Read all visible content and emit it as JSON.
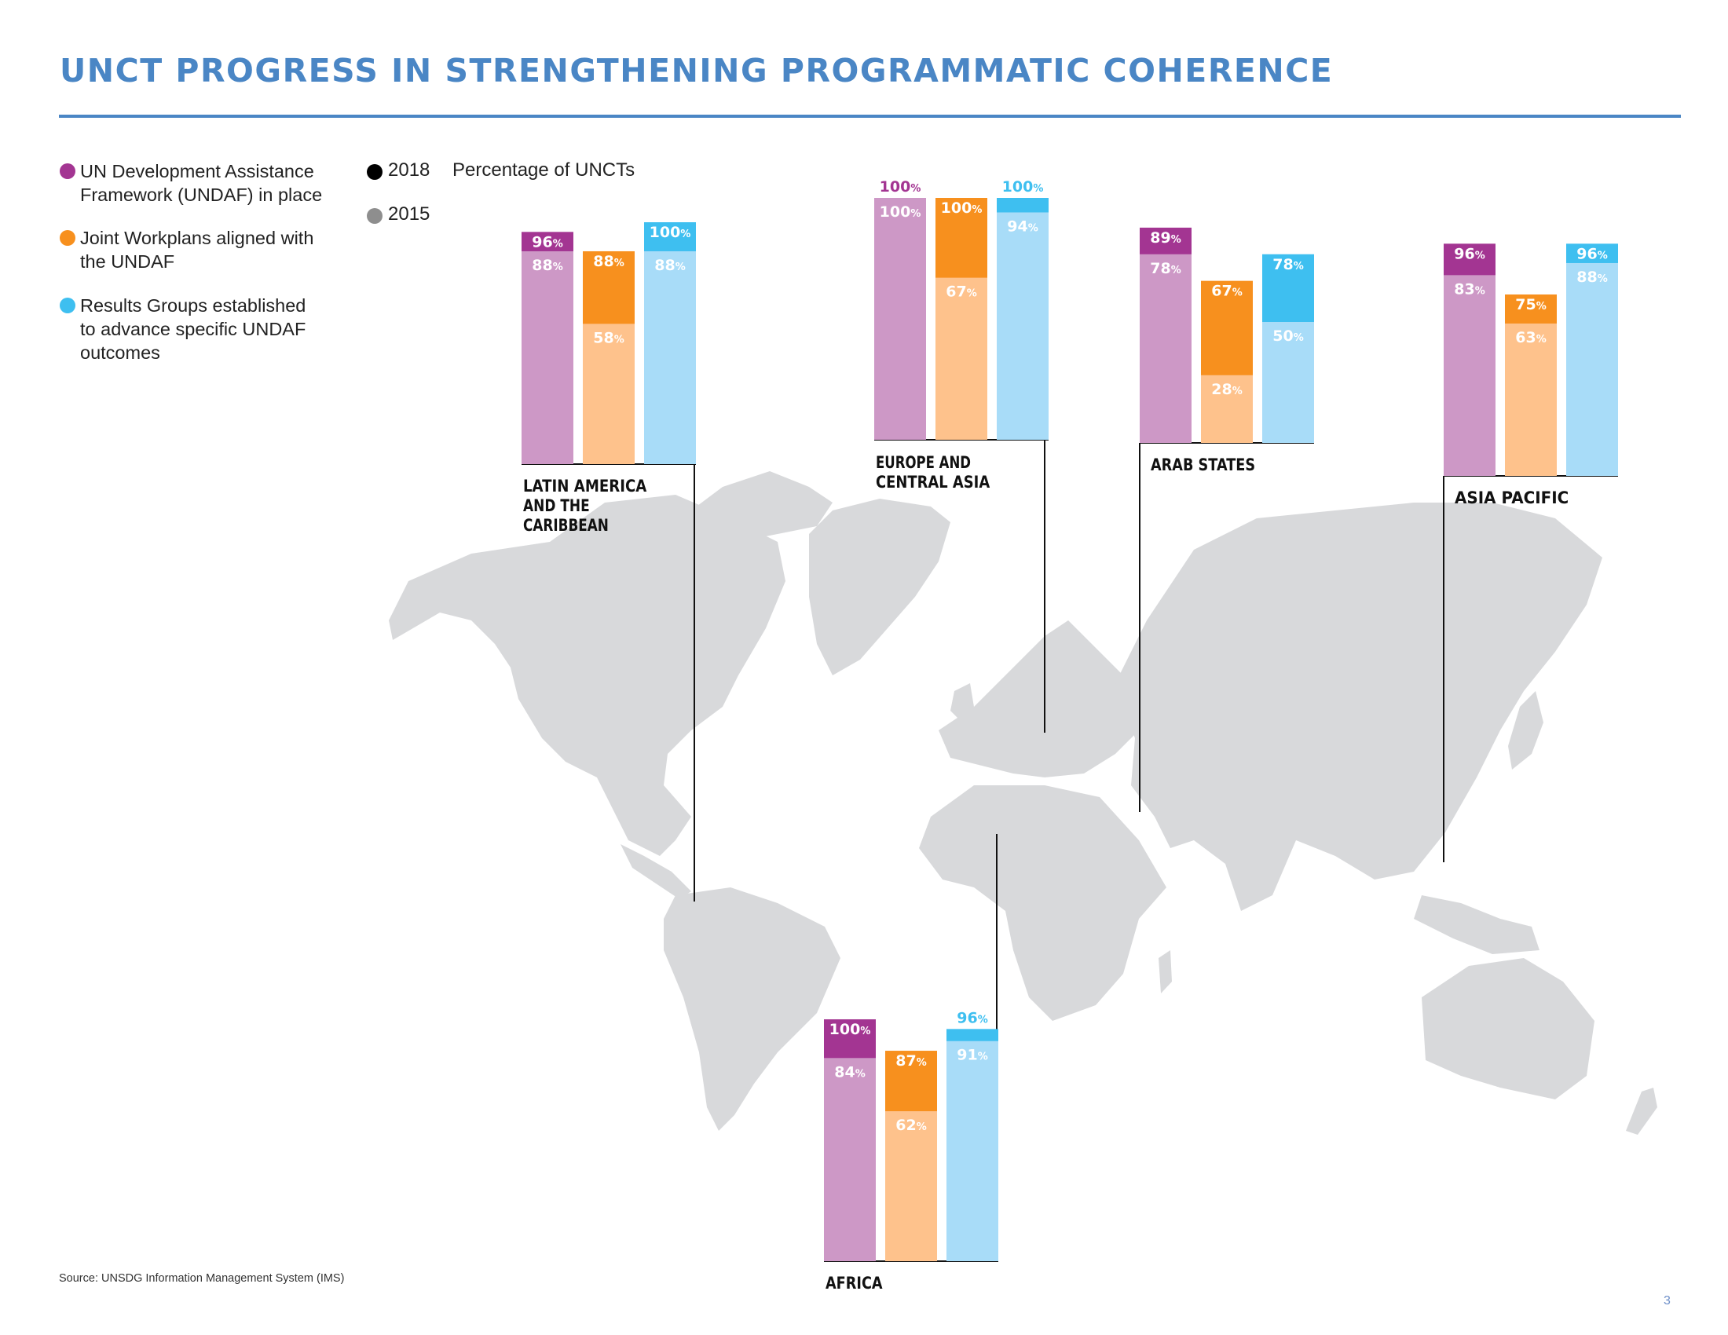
{
  "title": "UNCT PROGRESS IN STRENGTHENING PROGRAMMATIC COHERENCE",
  "legend": {
    "series": [
      {
        "label": "UN Development Assistance Framework (UNDAF) in place",
        "lines": [
          "UN Development Assistance",
          "Framework (UNDAF) in place"
        ],
        "color": "#a33592"
      },
      {
        "label": "Joint Workplans aligned with the UNDAF",
        "lines": [
          "Joint Workplans aligned with",
          "the UNDAF"
        ],
        "color": "#f7901e"
      },
      {
        "label": "Results Groups established to advance specific UNDAF outcomes",
        "lines": [
          "Results Groups established",
          "to advance specific UNDAF",
          "outcomes"
        ],
        "color": "#3ebff0"
      }
    ],
    "years": [
      {
        "label": "2018",
        "color": "#000000"
      },
      {
        "label": "2015",
        "color": "#8e8e8e"
      }
    ],
    "measure": "Percentage of UNCTs"
  },
  "colors": {
    "undaf_2018": "#a33592",
    "undaf_2015": "#cd98c6",
    "jwp_2018": "#f7901e",
    "jwp_2015": "#fec28c",
    "rg_2018": "#3ebff0",
    "rg_2015": "#a8dcf8",
    "map": "#d8d9db",
    "line": "#111111",
    "label_2015": "#ffffff"
  },
  "chart_data": {
    "type": "bar",
    "title": "UNCT PROGRESS IN STRENGTHENING PROGRAMMATIC COHERENCE",
    "ylabel": "Percentage of UNCTs",
    "unit": "%",
    "ylim": [
      0,
      100
    ],
    "series_names": [
      "UN Development Assistance Framework (UNDAF) in place",
      "Joint Workplans aligned with the UNDAF",
      "Results Groups established to advance specific UNDAF outcomes"
    ],
    "years": [
      "2018",
      "2015"
    ],
    "regions": [
      {
        "name": "LATIN AMERICA AND THE CARIBBEAN",
        "label_lines": [
          "LATIN AMERICA",
          "AND THE",
          "CARIBBEAN"
        ],
        "values_2018": [
          96,
          88,
          100
        ],
        "values_2015": [
          88,
          58,
          88
        ]
      },
      {
        "name": "EUROPE AND CENTRAL ASIA",
        "label_lines": [
          "EUROPE AND",
          "CENTRAL ASIA"
        ],
        "values_2018": [
          100,
          100,
          100
        ],
        "values_2015": [
          100,
          67,
          94
        ]
      },
      {
        "name": "ARAB STATES",
        "label_lines": [
          "ARAB STATES"
        ],
        "values_2018": [
          89,
          67,
          78
        ],
        "values_2015": [
          78,
          28,
          50
        ]
      },
      {
        "name": "ASIA PACIFIC",
        "label_lines": [
          "ASIA PACIFIC"
        ],
        "values_2018": [
          96,
          75,
          96
        ],
        "values_2015": [
          83,
          63,
          88
        ]
      },
      {
        "name": "AFRICA",
        "label_lines": [
          "AFRICA"
        ],
        "values_2018": [
          100,
          87,
          96
        ],
        "values_2015": [
          84,
          62,
          91
        ]
      }
    ]
  },
  "source": "Source: UNSDG Information Management System (IMS)",
  "page_number": "3"
}
